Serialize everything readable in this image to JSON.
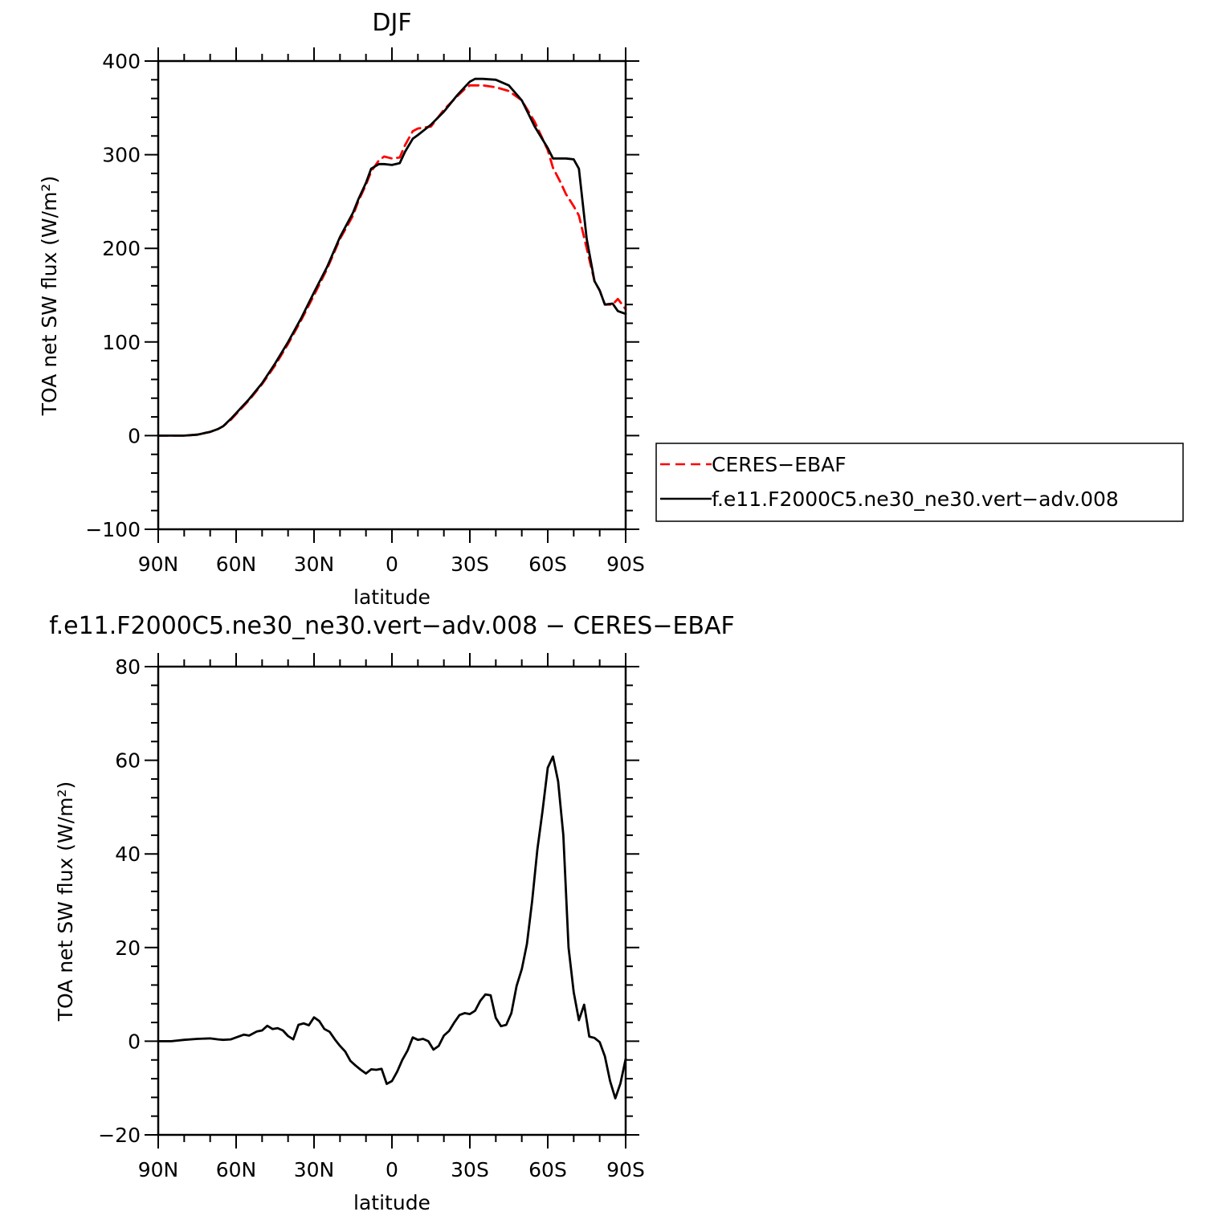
{
  "chart_data": [
    {
      "type": "line",
      "title": "DJF",
      "xlabel": "latitude",
      "ylabel": "TOA net SW flux (W/m²)",
      "xlim": [
        -90,
        90
      ],
      "ylim": [
        -100,
        400
      ],
      "x_ticks": [
        {
          "value": -90,
          "label": "90N"
        },
        {
          "value": -60,
          "label": "60N"
        },
        {
          "value": -30,
          "label": "30N"
        },
        {
          "value": 0,
          "label": "0"
        },
        {
          "value": 30,
          "label": "30S"
        },
        {
          "value": 60,
          "label": "60S"
        },
        {
          "value": 90,
          "label": "90S"
        }
      ],
      "y_ticks": [
        {
          "value": -100,
          "label": "−100"
        },
        {
          "value": 0,
          "label": "0"
        },
        {
          "value": 100,
          "label": "100"
        },
        {
          "value": 200,
          "label": "200"
        },
        {
          "value": 300,
          "label": "300"
        },
        {
          "value": 400,
          "label": "400"
        }
      ],
      "legend": {
        "placement": "right",
        "entries": [
          "CERES−EBAF",
          "f.e11.F2000C5.ne30_ne30.vert−adv.008"
        ]
      },
      "series": [
        {
          "name": "CERES−EBAF",
          "color": "#ff0000",
          "dash": "dashed",
          "x": [
            -90,
            -85,
            -80,
            -75,
            -70,
            -67,
            -65,
            -62,
            -60,
            -55,
            -50,
            -45,
            -40,
            -35,
            -30,
            -25,
            -20,
            -15,
            -13,
            -10,
            -8,
            -5,
            -3,
            0,
            3,
            5,
            8,
            10,
            15,
            20,
            25,
            28,
            30,
            32,
            35,
            40,
            45,
            50,
            55,
            60,
            62,
            65,
            67,
            70,
            72,
            75,
            78,
            80,
            82,
            85,
            87,
            90
          ],
          "y": [
            0,
            0,
            0,
            1,
            4,
            7,
            10,
            17,
            23,
            38,
            55,
            75,
            98,
            123,
            150,
            178,
            210,
            235,
            250,
            268,
            282,
            294,
            298,
            296,
            297,
            310,
            325,
            328,
            330,
            348,
            362,
            370,
            374,
            374,
            374,
            372,
            368,
            358,
            335,
            305,
            286,
            270,
            258,
            245,
            235,
            200,
            165,
            155,
            140,
            140,
            146,
            135
          ]
        },
        {
          "name": "f.e11.F2000C5.ne30_ne30.vert−adv.008",
          "color": "#000000",
          "dash": "solid",
          "x": [
            -90,
            -85,
            -80,
            -75,
            -70,
            -67,
            -65,
            -62,
            -60,
            -55,
            -50,
            -45,
            -40,
            -35,
            -30,
            -25,
            -20,
            -15,
            -13,
            -10,
            -8,
            -5,
            -3,
            0,
            3,
            5,
            8,
            10,
            15,
            20,
            25,
            28,
            30,
            32,
            35,
            40,
            45,
            50,
            55,
            60,
            62,
            65,
            67,
            70,
            72,
            75,
            78,
            80,
            82,
            85,
            87,
            90
          ],
          "y": [
            0,
            0,
            0,
            1,
            4,
            7,
            10,
            18,
            24,
            39,
            56,
            77,
            100,
            125,
            153,
            180,
            212,
            238,
            252,
            270,
            285,
            290,
            290,
            289,
            291,
            303,
            317,
            321,
            332,
            346,
            363,
            372,
            378,
            381,
            381,
            380,
            374,
            358,
            330,
            307,
            296,
            296,
            296,
            295,
            285,
            210,
            165,
            155,
            140,
            141,
            133,
            130
          ]
        }
      ]
    },
    {
      "type": "line",
      "title": "f.e11.F2000C5.ne30_ne30.vert−adv.008 − CERES−EBAF",
      "xlabel": "latitude",
      "ylabel": "TOA net SW flux (W/m²)",
      "xlim": [
        -90,
        90
      ],
      "ylim": [
        -20,
        80
      ],
      "x_ticks": [
        {
          "value": -90,
          "label": "90N"
        },
        {
          "value": -60,
          "label": "60N"
        },
        {
          "value": -30,
          "label": "30N"
        },
        {
          "value": 0,
          "label": "0"
        },
        {
          "value": 30,
          "label": "30S"
        },
        {
          "value": 60,
          "label": "60S"
        },
        {
          "value": 90,
          "label": "90S"
        }
      ],
      "y_ticks": [
        {
          "value": -20,
          "label": "−20"
        },
        {
          "value": 0,
          "label": "0"
        },
        {
          "value": 20,
          "label": "20"
        },
        {
          "value": 40,
          "label": "40"
        },
        {
          "value": 60,
          "label": "60"
        },
        {
          "value": 80,
          "label": "80"
        }
      ],
      "series": [
        {
          "color": "#000000",
          "dash": "solid",
          "x": [
            -90,
            -85,
            -80,
            -75,
            -70,
            -67,
            -65,
            -62,
            -60,
            -57,
            -55,
            -52,
            -50,
            -48,
            -46,
            -44,
            -42,
            -40,
            -38,
            -36,
            -34,
            -32,
            -30,
            -28,
            -26,
            -24,
            -22,
            -20,
            -18,
            -16,
            -14,
            -12,
            -10,
            -8,
            -6,
            -4,
            -2,
            0,
            2,
            4,
            6,
            8,
            10,
            12,
            14,
            16,
            18,
            20,
            22,
            24,
            26,
            28,
            30,
            32,
            34,
            36,
            38,
            40,
            42,
            44,
            46,
            48,
            50,
            52,
            54,
            56,
            58,
            60,
            62,
            64,
            66,
            68,
            70,
            72,
            74,
            76,
            78,
            80,
            82,
            84,
            86,
            88,
            90
          ],
          "y": [
            0,
            0,
            0.3,
            0.5,
            0.6,
            0.4,
            0.3,
            0.4,
            0.8,
            1.4,
            1.2,
            2.1,
            2.3,
            3.3,
            2.6,
            2.8,
            2.3,
            1.1,
            0.4,
            3.5,
            3.8,
            3.4,
            5.1,
            4.3,
            2.6,
            2.0,
            0.4,
            -1.0,
            -2.2,
            -4.2,
            -5.2,
            -6.1,
            -6.9,
            -6.0,
            -6.1,
            -5.9,
            -9.1,
            -8.5,
            -6.5,
            -4.0,
            -2.0,
            0.8,
            0.3,
            0.5,
            0.0,
            -1.8,
            -1.0,
            1.2,
            2.2,
            4.0,
            5.6,
            6.0,
            5.8,
            6.5,
            8.6,
            10.0,
            9.8,
            5.0,
            3.2,
            3.5,
            6.0,
            11.8,
            15.4,
            20.8,
            30.0,
            41.0,
            49.2,
            58.4,
            60.8,
            55.5,
            44.0,
            20.0,
            10.5,
            4.5,
            7.8,
            1.0,
            0.7,
            -0.2,
            -3.2,
            -8.5,
            -12.2,
            -9.0,
            -3.8
          ]
        }
      ]
    }
  ]
}
